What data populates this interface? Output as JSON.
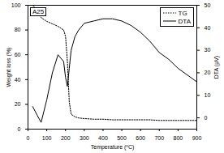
{
  "chart_data": {
    "type": "line",
    "annotation": "A25",
    "x": [
      25,
      50,
      70,
      100,
      130,
      160,
      190,
      200,
      210,
      220,
      230,
      250,
      270,
      300,
      350,
      400,
      450,
      500,
      550,
      600,
      650,
      700,
      750,
      800,
      850,
      900
    ],
    "series": [
      {
        "name": "TG",
        "color": "#000000",
        "line_style": "dotted",
        "values": [
          100,
          96,
          90,
          87,
          85,
          83,
          80,
          75,
          55,
          22,
          12,
          10,
          9,
          8.5,
          8,
          8,
          7.5,
          7.5,
          7.5,
          7.5,
          7.5,
          7,
          7,
          7,
          7,
          7
        ]
      },
      {
        "name": "DTA",
        "color": "#000000",
        "line_style": "solid",
        "axis": "y2",
        "values": [
          5,
          1,
          -2,
          8,
          20,
          28,
          25,
          18,
          14,
          22,
          30,
          36,
          39,
          42,
          43,
          44,
          44,
          43,
          41,
          38,
          34,
          29,
          26,
          22,
          19,
          16
        ]
      }
    ],
    "xlabel": "Temperature (ºC)",
    "ylabel": "Weight loss (%)",
    "y2label": "DTA (μV)",
    "xlim": [
      0,
      900
    ],
    "xticks": [
      0,
      100,
      200,
      300,
      400,
      500,
      600,
      700,
      800,
      900
    ],
    "ylim": [
      0,
      100
    ],
    "yticks": [
      0,
      20,
      40,
      60,
      80,
      100
    ],
    "y2lim": [
      -5,
      50
    ],
    "y2ticks": [
      0,
      10,
      20,
      30,
      40,
      50
    ],
    "legend": "top-right",
    "grid": false
  }
}
